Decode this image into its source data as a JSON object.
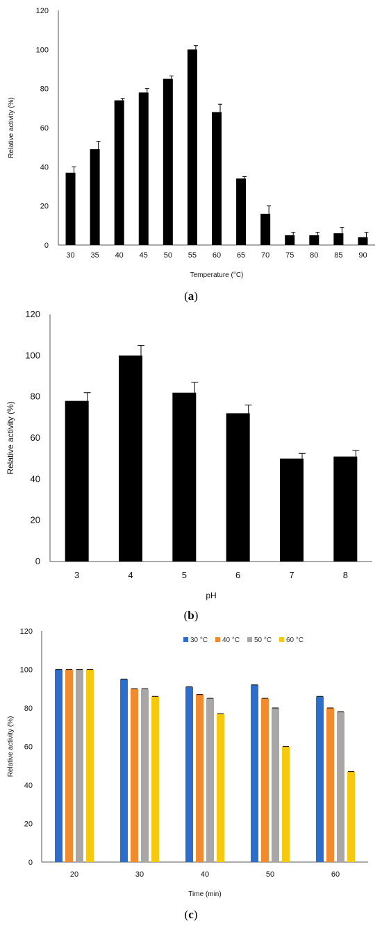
{
  "chart_data": [
    {
      "type": "bar",
      "panel_label": "a",
      "xlabel": "Temperature  (°C)",
      "ylabel": "Relative activity (%)",
      "ylim": [
        0,
        120
      ],
      "yticks": [
        0,
        20,
        40,
        60,
        80,
        100,
        120
      ],
      "grid": false,
      "categories": [
        "30",
        "35",
        "40",
        "45",
        "50",
        "55",
        "60",
        "65",
        "70",
        "75",
        "80",
        "85",
        "90"
      ],
      "values": [
        37,
        49,
        74,
        78,
        85,
        100,
        68,
        34,
        16,
        5,
        5,
        6,
        4
      ],
      "errors": [
        3,
        4,
        1,
        2,
        1.5,
        2,
        4,
        1,
        4,
        1.5,
        1.5,
        3,
        2.5
      ],
      "color": "#000000"
    },
    {
      "type": "bar",
      "panel_label": "b",
      "xlabel": "pH",
      "ylabel": "Relative activity (%)",
      "ylim": [
        0,
        120
      ],
      "yticks": [
        0,
        20,
        40,
        60,
        80,
        100,
        120
      ],
      "grid": false,
      "categories": [
        "3",
        "4",
        "5",
        "6",
        "7",
        "8"
      ],
      "values": [
        78,
        100,
        82,
        72,
        50,
        51
      ],
      "errors": [
        4,
        5,
        5,
        4,
        2.5,
        3
      ],
      "color": "#000000"
    },
    {
      "type": "bar",
      "panel_label": "c",
      "xlabel": "Time  (min)",
      "ylabel": "Relative activity (%)",
      "ylim": [
        0,
        120
      ],
      "yticks": [
        0,
        20,
        40,
        60,
        80,
        100,
        120
      ],
      "grid": false,
      "legend_position": "top-right",
      "categories": [
        "20",
        "30",
        "40",
        "50",
        "60"
      ],
      "series": [
        {
          "name": "30 °C",
          "color": "#2e6ecb",
          "values": [
            100,
            95,
            91,
            92,
            86
          ]
        },
        {
          "name": "40 °C",
          "color": "#f28a2e",
          "values": [
            100,
            90,
            87,
            85,
            80
          ]
        },
        {
          "name": "50 °C",
          "color": "#a9a6a6",
          "values": [
            100,
            90,
            85,
            80,
            78
          ]
        },
        {
          "name": "60 °C",
          "color": "#f6c90f",
          "values": [
            100,
            86,
            77,
            60,
            47
          ]
        }
      ]
    }
  ]
}
